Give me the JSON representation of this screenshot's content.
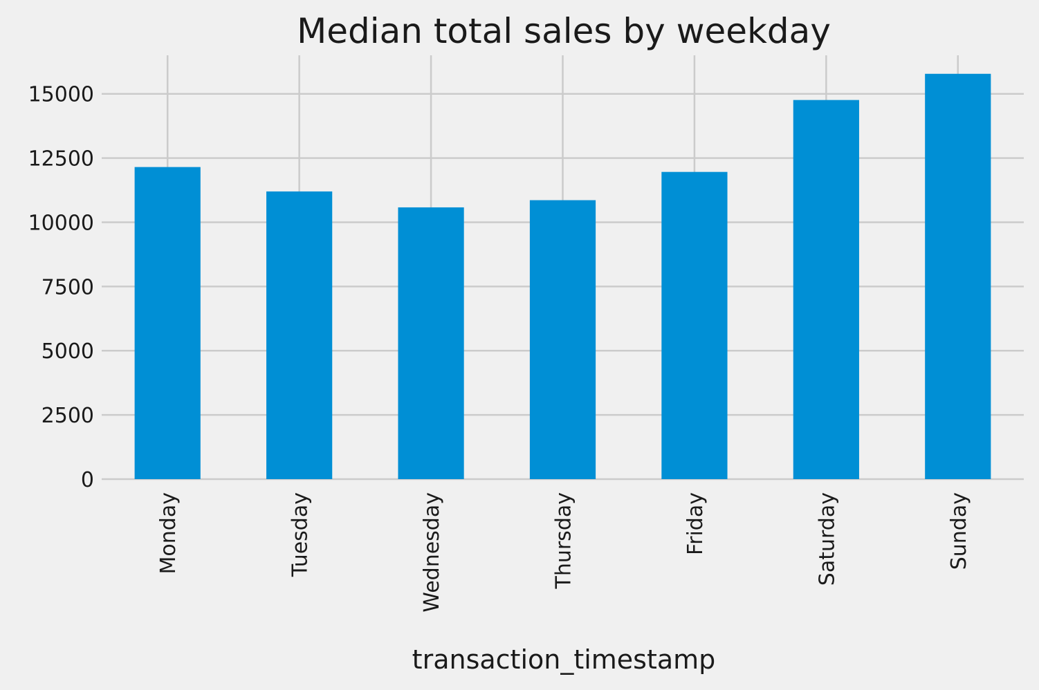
{
  "chart_data": {
    "type": "bar",
    "title": "Median total sales by weekday",
    "xlabel": "transaction_timestamp",
    "ylabel": "",
    "categories": [
      "Monday",
      "Tuesday",
      "Wednesday",
      "Thursday",
      "Friday",
      "Saturday",
      "Sunday"
    ],
    "values": [
      12150,
      11200,
      10580,
      10860,
      11960,
      14760,
      15780
    ],
    "ylim": [
      0,
      16500
    ],
    "yticks": [
      0,
      2500,
      5000,
      7500,
      10000,
      12500,
      15000
    ],
    "ytick_labels": [
      "0",
      "2500",
      "5000",
      "7500",
      "10000",
      "12500",
      "15000"
    ],
    "grid": true,
    "legend": "none",
    "bar_color": "#008fd5",
    "grid_color": "#cbcbcb",
    "background_color": "#f0f0f0"
  }
}
